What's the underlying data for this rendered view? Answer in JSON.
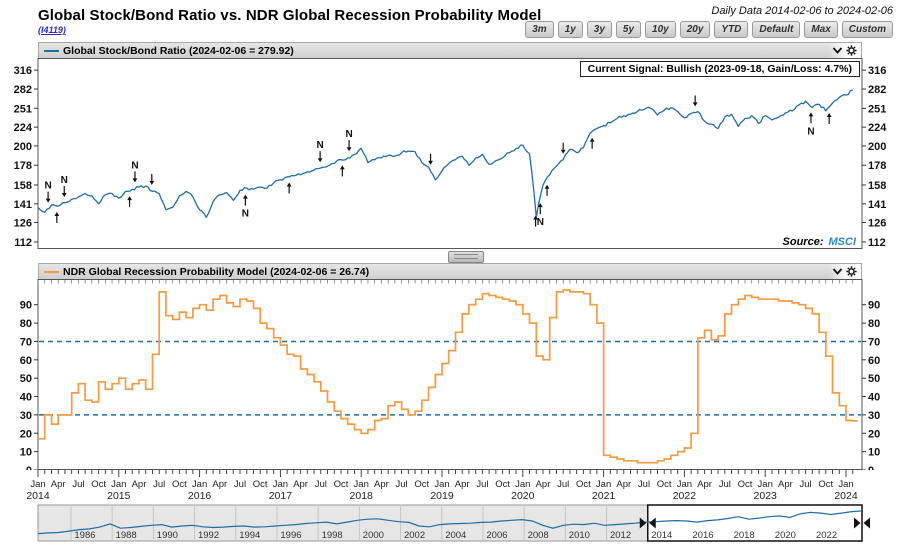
{
  "header": {
    "title": "Global Stock/Bond Ratio vs. NDR Global Recession Probability Model",
    "chart_id": "(I4119)",
    "date_range": "Daily Data 2014-02-06 to 2024-02-06",
    "range_buttons": [
      "3m",
      "1y",
      "3y",
      "5y",
      "10y",
      "20y",
      "YTD",
      "Default",
      "Max",
      "Custom"
    ]
  },
  "top_chart": {
    "legend": "Global Stock/Bond Ratio (2024-02-06 = 279.92)",
    "signal": "Current Signal: Bullish (2023-09-18, Gain/Loss: 4.7%)",
    "source_label": "Source:",
    "source_link": "MSCI",
    "line_color": "#1f6ea5"
  },
  "bottom_chart": {
    "legend": "NDR Global Recession Probability Model (2024-02-06 = 26.74)",
    "line_color": "#f59c42",
    "threshold_color": "#1f6ea5"
  },
  "x_axis": {
    "month_labels": [
      "Jan",
      "Apr",
      "Jul",
      "Oct",
      "Jan",
      "Apr",
      "Jul",
      "Oct",
      "Jan",
      "Apr",
      "Jul",
      "Oct",
      "Jan",
      "Apr",
      "Jul",
      "Oct",
      "Jan",
      "Apr",
      "Jul",
      "Oct",
      "Jan",
      "Apr",
      "Jul",
      "Oct",
      "Jan",
      "Apr",
      "Jul",
      "Oct",
      "Jan",
      "Apr",
      "Jul",
      "Oct",
      "Jan",
      "Apr",
      "Jul",
      "Oct",
      "Jan",
      "Apr",
      "Jul",
      "Oct",
      "Jan"
    ],
    "year_labels": [
      "2014",
      "2015",
      "2016",
      "2017",
      "2018",
      "2019",
      "2020",
      "2021",
      "2022",
      "2023",
      "2024"
    ]
  },
  "mini_chart": {
    "year_labels": [
      "1986",
      "1988",
      "1990",
      "1992",
      "1994",
      "1996",
      "1998",
      "2000",
      "2002",
      "2004",
      "2006",
      "2008",
      "2010",
      "2012",
      "2014",
      "2016",
      "2018",
      "2020",
      "2022"
    ],
    "selection_start_year": 2014
  },
  "chart_data": [
    {
      "type": "line",
      "name": "Global Stock/Bond Ratio",
      "scale": "log",
      "start": "2014-01",
      "freq": "monthly",
      "ylim": [
        108,
        340
      ],
      "y_ticks": [
        316,
        282,
        251,
        224,
        200,
        178,
        158,
        141,
        126,
        112
      ],
      "last_value": 279.92,
      "values": [
        138,
        134,
        140,
        139,
        142,
        145,
        147,
        150,
        148,
        141,
        149,
        150,
        146,
        152,
        154,
        156,
        157,
        152,
        150,
        136,
        138,
        148,
        152,
        147,
        136,
        130,
        143,
        149,
        151,
        144,
        153,
        155,
        154,
        156,
        155,
        160,
        163,
        166,
        167,
        168,
        171,
        173,
        175,
        177,
        180,
        184,
        186,
        190,
        197,
        181,
        184,
        186,
        189,
        188,
        192,
        194,
        193,
        181,
        176,
        163,
        172,
        180,
        184,
        188,
        178,
        186,
        190,
        179,
        183,
        186,
        192,
        197,
        201,
        191,
        130,
        158,
        168,
        177,
        184,
        196,
        192,
        198,
        216,
        222,
        226,
        230,
        236,
        240,
        242,
        246,
        249,
        251,
        241,
        248,
        252,
        246,
        237,
        243,
        246,
        232,
        228,
        222,
        238,
        242,
        225,
        236,
        240,
        229,
        240,
        234,
        238,
        244,
        247,
        256,
        262,
        252,
        257,
        247,
        259,
        268,
        272,
        280
      ],
      "annotations": [
        {
          "m": 1.5,
          "side": "above",
          "label": "N"
        },
        {
          "m": 2.8,
          "side": "below",
          "label": ""
        },
        {
          "m": 3.9,
          "side": "above",
          "label": "N"
        },
        {
          "m": 13.6,
          "side": "below",
          "label": ""
        },
        {
          "m": 14.4,
          "side": "above",
          "label": "N"
        },
        {
          "m": 16.9,
          "side": "above",
          "label": ""
        },
        {
          "m": 30.8,
          "side": "below",
          "label": "N"
        },
        {
          "m": 37.3,
          "side": "below",
          "label": ""
        },
        {
          "m": 41.9,
          "side": "above",
          "label": "N"
        },
        {
          "m": 45.2,
          "side": "below",
          "label": ""
        },
        {
          "m": 46.2,
          "side": "above",
          "label": "N"
        },
        {
          "m": 58.3,
          "side": "above",
          "label": ""
        },
        {
          "m": 73.9,
          "side": "below",
          "label": ""
        },
        {
          "m": 74.6,
          "side": "below",
          "label": "N"
        },
        {
          "m": 75.6,
          "side": "below",
          "label": ""
        },
        {
          "m": 78,
          "side": "above",
          "label": ""
        },
        {
          "m": 82.3,
          "side": "below",
          "label": ""
        },
        {
          "m": 97.6,
          "side": "above",
          "label": ""
        },
        {
          "m": 114.8,
          "side": "below",
          "label": "N"
        },
        {
          "m": 117.5,
          "side": "below",
          "label": ""
        }
      ]
    },
    {
      "type": "step-line",
      "name": "NDR Global Recession Probability Model",
      "scale": "linear",
      "start": "2014-01",
      "freq": "monthly",
      "ylim": [
        0,
        104
      ],
      "y_ticks": [
        90,
        80,
        70,
        60,
        50,
        40,
        30,
        20,
        10,
        0
      ],
      "thresholds": [
        70,
        30
      ],
      "last_value": 26.74,
      "values": [
        17,
        30,
        25,
        30,
        30,
        42,
        47,
        38,
        37,
        48,
        44,
        47,
        50,
        44,
        47,
        49,
        44,
        63,
        97,
        84,
        82,
        86,
        83,
        88,
        90,
        87,
        93,
        95,
        91,
        89,
        93,
        92,
        88,
        80,
        77,
        72,
        68,
        63,
        62,
        55,
        52,
        48,
        43,
        37,
        32,
        28,
        25,
        22,
        20,
        22,
        27,
        28,
        35,
        37,
        33,
        30,
        32,
        38,
        45,
        52,
        58,
        65,
        75,
        85,
        90,
        93,
        96,
        95,
        94,
        93,
        92,
        90,
        85,
        80,
        62,
        60,
        83,
        97,
        98,
        97,
        97,
        96,
        90,
        80,
        8,
        7,
        6,
        5,
        5,
        4,
        4,
        4,
        5,
        6,
        8,
        10,
        12,
        20,
        72,
        76,
        71,
        73,
        85,
        90,
        93,
        95,
        94,
        93,
        93,
        93,
        92,
        92,
        91,
        90,
        88,
        85,
        75,
        62,
        42,
        35,
        27,
        26.74
      ]
    },
    {
      "type": "line",
      "name": "overview-1984-2024",
      "x_start": 1984.4,
      "x_step": 0.5,
      "selection": [
        2014,
        2024.2
      ],
      "values": [
        0.15,
        0.17,
        0.18,
        0.22,
        0.26,
        0.28,
        0.33,
        0.42,
        0.3,
        0.32,
        0.35,
        0.38,
        0.4,
        0.33,
        0.36,
        0.38,
        0.34,
        0.32,
        0.33,
        0.35,
        0.36,
        0.33,
        0.34,
        0.36,
        0.38,
        0.4,
        0.43,
        0.45,
        0.47,
        0.42,
        0.47,
        0.52,
        0.55,
        0.56,
        0.52,
        0.48,
        0.46,
        0.36,
        0.34,
        0.4,
        0.42,
        0.43,
        0.44,
        0.46,
        0.47,
        0.5,
        0.52,
        0.54,
        0.5,
        0.38,
        0.3,
        0.38,
        0.41,
        0.4,
        0.44,
        0.38,
        0.4,
        0.42,
        0.44,
        0.47,
        0.48,
        0.5,
        0.51,
        0.5,
        0.47,
        0.51,
        0.53,
        0.57,
        0.62,
        0.55,
        0.58,
        0.62,
        0.64,
        0.6,
        0.7,
        0.74,
        0.72,
        0.68,
        0.72,
        0.76,
        0.78
      ]
    }
  ]
}
